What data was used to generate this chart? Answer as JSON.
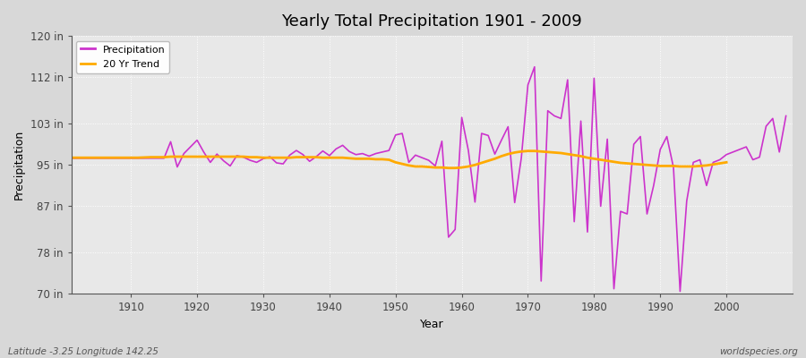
{
  "title": "Yearly Total Precipitation 1901 - 2009",
  "xlabel": "Year",
  "ylabel": "Precipitation",
  "subtitle_left": "Latitude -3.25 Longitude 142.25",
  "subtitle_right": "worldspecies.org",
  "years": [
    1901,
    1902,
    1903,
    1904,
    1905,
    1906,
    1907,
    1908,
    1909,
    1910,
    1911,
    1912,
    1913,
    1914,
    1915,
    1916,
    1917,
    1918,
    1919,
    1920,
    1921,
    1922,
    1923,
    1924,
    1925,
    1926,
    1927,
    1928,
    1929,
    1930,
    1931,
    1932,
    1933,
    1934,
    1935,
    1936,
    1937,
    1938,
    1939,
    1940,
    1941,
    1942,
    1943,
    1944,
    1945,
    1946,
    1947,
    1948,
    1949,
    1950,
    1951,
    1952,
    1953,
    1954,
    1955,
    1956,
    1957,
    1958,
    1959,
    1960,
    1961,
    1962,
    1963,
    1964,
    1965,
    1966,
    1967,
    1968,
    1969,
    1970,
    1971,
    1972,
    1973,
    1974,
    1975,
    1976,
    1977,
    1978,
    1979,
    1980,
    1981,
    1982,
    1983,
    1984,
    1985,
    1986,
    1987,
    1988,
    1989,
    1990,
    1991,
    1992,
    1993,
    1994,
    1995,
    1996,
    1997,
    1998,
    1999,
    2000,
    2001,
    2002,
    2003,
    2004,
    2005,
    2006,
    2007,
    2008,
    2009
  ],
  "precipitation": [
    96.3,
    96.3,
    96.3,
    96.3,
    96.3,
    96.3,
    96.3,
    96.3,
    96.3,
    96.3,
    96.3,
    96.3,
    96.3,
    96.3,
    96.3,
    99.5,
    94.6,
    97.2,
    98.5,
    99.8,
    97.5,
    95.5,
    97.1,
    95.8,
    94.8,
    96.8,
    96.5,
    95.9,
    95.5,
    96.2,
    96.6,
    95.4,
    95.2,
    96.9,
    97.8,
    97.0,
    95.7,
    96.6,
    97.7,
    96.8,
    98.1,
    98.8,
    97.6,
    97.0,
    97.2,
    96.7,
    97.2,
    97.5,
    97.8,
    100.8,
    101.1,
    95.5,
    96.9,
    96.4,
    95.9,
    94.8,
    99.6,
    81.0,
    82.5,
    104.2,
    97.8,
    87.8,
    101.1,
    100.7,
    97.1,
    99.8,
    102.4,
    87.7,
    96.3,
    110.5,
    114.0,
    72.5,
    105.5,
    104.5,
    104.0,
    111.5,
    84.0,
    103.5,
    82.0,
    111.8,
    87.0,
    100.0,
    71.0,
    86.0,
    85.5,
    99.0,
    100.5,
    85.5,
    91.0,
    98.0,
    100.5,
    94.5,
    70.5,
    88.0,
    95.5,
    96.0,
    91.0,
    95.5,
    96.0,
    97.0,
    97.5,
    98.0,
    98.5,
    96.0,
    96.5,
    102.5,
    104.0,
    97.5,
    104.5
  ],
  "trend": [
    96.4,
    96.4,
    96.4,
    96.4,
    96.4,
    96.4,
    96.4,
    96.4,
    96.4,
    96.4,
    96.4,
    96.45,
    96.5,
    96.5,
    96.5,
    96.6,
    96.6,
    96.6,
    96.6,
    96.6,
    96.6,
    96.6,
    96.6,
    96.6,
    96.6,
    96.6,
    96.6,
    96.5,
    96.5,
    96.4,
    96.4,
    96.4,
    96.4,
    96.4,
    96.5,
    96.5,
    96.5,
    96.5,
    96.4,
    96.4,
    96.4,
    96.4,
    96.3,
    96.2,
    96.2,
    96.2,
    96.1,
    96.1,
    96.0,
    95.5,
    95.2,
    94.9,
    94.7,
    94.7,
    94.6,
    94.5,
    94.5,
    94.4,
    94.4,
    94.5,
    94.7,
    95.0,
    95.4,
    95.8,
    96.2,
    96.7,
    97.1,
    97.4,
    97.6,
    97.7,
    97.7,
    97.6,
    97.5,
    97.4,
    97.3,
    97.1,
    96.9,
    96.7,
    96.4,
    96.2,
    96.0,
    95.8,
    95.6,
    95.4,
    95.3,
    95.2,
    95.1,
    95.0,
    94.9,
    94.8,
    94.8,
    94.8,
    94.7,
    94.7,
    94.7,
    94.8,
    94.9,
    95.1,
    95.3,
    95.5,
    null,
    null,
    null,
    null,
    null,
    null,
    null,
    null,
    null
  ],
  "precip_color": "#cc33cc",
  "trend_color": "#ffaa00",
  "fig_bg_color": "#d8d8d8",
  "plot_bg_color": "#e8e8e8",
  "grid_color": "#ffffff",
  "ylim": [
    70,
    120
  ],
  "yticks": [
    70,
    78,
    87,
    95,
    103,
    112,
    120
  ],
  "ytick_labels": [
    "70 in",
    "78 in",
    "87 in",
    "95 in",
    "103 in",
    "112 in",
    "120 in"
  ],
  "xtick_start": 1910,
  "xtick_end": 2000,
  "xtick_step": 10,
  "xlim_left": 1901,
  "xlim_right": 2010
}
